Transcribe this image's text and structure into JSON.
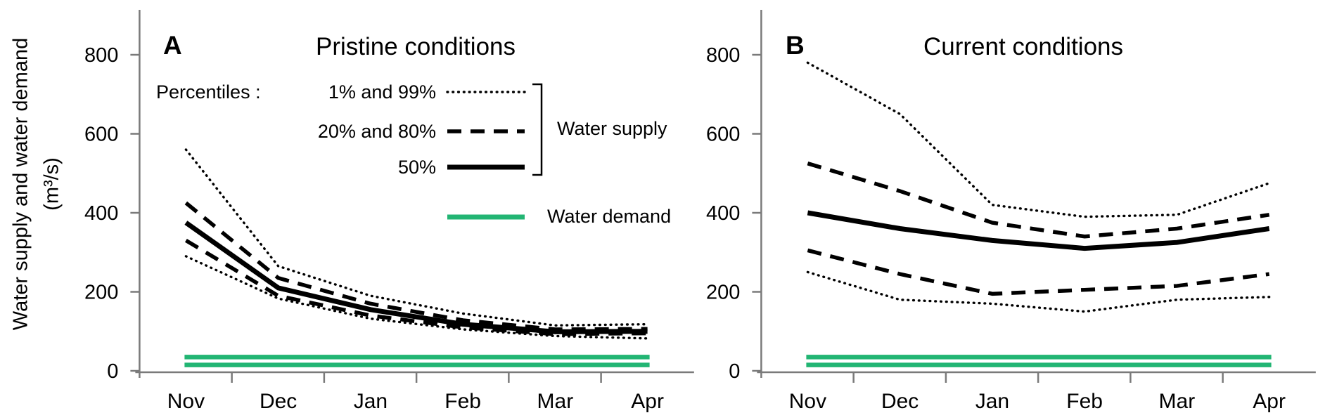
{
  "figure": {
    "y_axis_label_line1": "Water supply and water demand",
    "y_axis_label_line2": "(m³/s)",
    "colors": {
      "supply_line": "#000000",
      "demand_line": "#22b573",
      "axis": "#7a7a7a",
      "text": "#000000"
    }
  },
  "legend": {
    "percentiles_label": "Percentiles :",
    "rows": [
      {
        "label": "1% and 99%",
        "style": "dotted"
      },
      {
        "label": "20% and 80%",
        "style": "dashed"
      },
      {
        "label": "50%",
        "style": "solid"
      }
    ],
    "supply_label": "Water supply",
    "demand_label": "Water demand"
  },
  "chart_data": [
    {
      "type": "line",
      "panel_letter": "A",
      "title": "Pristine conditions",
      "categories": [
        "Nov",
        "Dec",
        "Jan",
        "Feb",
        "Mar",
        "Apr"
      ],
      "xlabel": "",
      "ylabel": "Water supply and water demand (m³/s)",
      "ylim": [
        0,
        910
      ],
      "yticks": [
        0,
        200,
        400,
        600,
        800
      ],
      "grid": false,
      "legend_position": "upper-right-inside",
      "series": [
        {
          "name": "99th percentile water supply",
          "style": "dotted",
          "values": [
            560,
            265,
            190,
            145,
            115,
            118
          ]
        },
        {
          "name": "80th percentile water supply",
          "style": "dashed",
          "values": [
            425,
            235,
            170,
            128,
            105,
            106
          ]
        },
        {
          "name": "50th percentile water supply",
          "style": "solid",
          "values": [
            375,
            210,
            155,
            118,
            99,
            100
          ]
        },
        {
          "name": "20th percentile water supply",
          "style": "dashed",
          "values": [
            330,
            190,
            140,
            110,
            93,
            95
          ]
        },
        {
          "name": "1st percentile water supply",
          "style": "dotted",
          "values": [
            290,
            183,
            132,
            105,
            88,
            82
          ]
        }
      ],
      "demand_lines": [
        35,
        15
      ]
    },
    {
      "type": "line",
      "panel_letter": "B",
      "title": "Current conditions",
      "categories": [
        "Nov",
        "Dec",
        "Jan",
        "Feb",
        "Mar",
        "Apr"
      ],
      "xlabel": "",
      "ylabel": "Water supply and water demand (m³/s)",
      "ylim": [
        0,
        910
      ],
      "yticks": [
        0,
        200,
        400,
        600,
        800
      ],
      "grid": false,
      "legend_position": "none",
      "series": [
        {
          "name": "99th percentile water supply",
          "style": "dotted",
          "values": [
            780,
            650,
            420,
            390,
            395,
            475
          ]
        },
        {
          "name": "80th percentile water supply",
          "style": "dashed",
          "values": [
            525,
            455,
            375,
            340,
            360,
            395
          ]
        },
        {
          "name": "50th percentile water supply",
          "style": "solid",
          "values": [
            400,
            360,
            330,
            310,
            325,
            360
          ]
        },
        {
          "name": "20th percentile water supply",
          "style": "dashed",
          "values": [
            305,
            245,
            195,
            205,
            215,
            245
          ]
        },
        {
          "name": "1st percentile water supply",
          "style": "dotted",
          "values": [
            250,
            180,
            170,
            150,
            180,
            187
          ]
        }
      ],
      "demand_lines": [
        35,
        15
      ]
    }
  ]
}
